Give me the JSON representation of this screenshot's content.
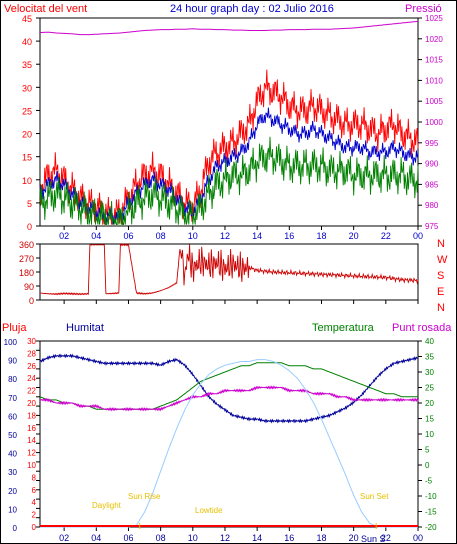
{
  "colors": {
    "wind": "#ff0000",
    "gust_dark": "#cc0000",
    "average": "#0000cc",
    "temperature": "#008000",
    "dew_point": "#cc00cc",
    "humidity": "#000099",
    "pressure": "#cc00cc",
    "rain": "#ff0000",
    "solar": "#99ccff",
    "sun_events": "#e6c000",
    "axis": "#000000"
  },
  "header": {
    "wind_label": "Velocitat del vent",
    "title": "24 hour graph day : 02 Julio 2016",
    "pressure_label": "Pressió"
  },
  "bottom_header": {
    "rain_label": "Pluja",
    "humidity_label": "Humitat",
    "temperature_label": "Temperatura",
    "dew_label": "Punt rosada"
  },
  "direction_labels": [
    "N",
    "W",
    "S",
    "E",
    "N"
  ],
  "sun_events": {
    "daylight": "Daylight",
    "sunrise": "Sun Rise",
    "sunset": "Sun Set",
    "lowtide": "Lowtide",
    "suns": "Sun S"
  },
  "chart_data": [
    {
      "type": "line",
      "name": "wind-pressure",
      "x_ticks": [
        "02",
        "04",
        "06",
        "08",
        "10",
        "12",
        "14",
        "16",
        "18",
        "20",
        "22",
        "00"
      ],
      "x_range_hours": [
        0.5,
        24
      ],
      "ylim_left": [
        0,
        45
      ],
      "yticks_left": [
        0,
        5,
        10,
        15,
        20,
        25,
        30,
        35,
        40,
        45
      ],
      "ylim_right": [
        975,
        1025
      ],
      "yticks_right": [
        975,
        980,
        985,
        990,
        995,
        1000,
        1005,
        1010,
        1015,
        1020,
        1025
      ],
      "hours": [
        0.5,
        1,
        1.5,
        2,
        2.5,
        3,
        3.5,
        4,
        4.5,
        5,
        5.5,
        6,
        6.5,
        7,
        7.5,
        8,
        8.5,
        9,
        9.5,
        10,
        10.5,
        11,
        11.5,
        12,
        12.5,
        13,
        13.5,
        14,
        14.5,
        15,
        15.5,
        16,
        16.5,
        17,
        17.5,
        18,
        18.5,
        19,
        19.5,
        20,
        20.5,
        21,
        21.5,
        22,
        22.5,
        23,
        23.5,
        24
      ],
      "series": [
        {
          "key": "gust",
          "values": [
            8,
            11,
            12,
            10,
            8,
            6,
            5,
            4,
            3,
            2,
            3,
            6,
            9,
            11,
            12,
            11,
            9,
            7,
            5,
            4,
            8,
            14,
            16,
            17,
            18,
            20,
            22,
            27,
            30,
            29,
            28,
            26,
            25,
            25,
            26,
            25,
            24,
            23,
            22,
            22,
            22,
            21,
            20,
            21,
            22,
            20,
            19,
            18
          ]
        },
        {
          "key": "average",
          "values": [
            7,
            9,
            10,
            9,
            7,
            5,
            4,
            3,
            2,
            2,
            2,
            5,
            7,
            9,
            10,
            9,
            8,
            6,
            4,
            3,
            6,
            10,
            13,
            14,
            15,
            16,
            18,
            22,
            24,
            23,
            22,
            21,
            20,
            20,
            21,
            20,
            19,
            18,
            17,
            17,
            17,
            16,
            16,
            16,
            17,
            16,
            15,
            15
          ]
        },
        {
          "key": "wind",
          "values": [
            5,
            6,
            7,
            6,
            5,
            4,
            3,
            2,
            2,
            1,
            1,
            3,
            5,
            6,
            7,
            6,
            5,
            4,
            2,
            2,
            4,
            7,
            9,
            10,
            11,
            11,
            12,
            14,
            15,
            15,
            14,
            13,
            13,
            13,
            13,
            13,
            12,
            12,
            12,
            11,
            11,
            11,
            11,
            11,
            11,
            11,
            10,
            10
          ]
        },
        {
          "key": "pressure",
          "values": [
            1021.5,
            1021.6,
            1021.4,
            1021.3,
            1021.2,
            1021.0,
            1021.0,
            1021.1,
            1021.2,
            1021.3,
            1021.4,
            1021.6,
            1021.8,
            1022.0,
            1022.1,
            1022.2,
            1022.2,
            1022.3,
            1022.3,
            1022.4,
            1022.3,
            1022.3,
            1022.2,
            1022.2,
            1022.1,
            1022.1,
            1022.0,
            1022.0,
            1022.0,
            1022.1,
            1022.1,
            1022.2,
            1022.2,
            1022.2,
            1022.3,
            1022.3,
            1022.3,
            1022.4,
            1022.5,
            1022.6,
            1022.8,
            1023.0,
            1023.2,
            1023.4,
            1023.6,
            1023.8,
            1024.0,
            1024.2
          ]
        }
      ]
    },
    {
      "type": "line",
      "name": "wind-direction",
      "ylim": [
        0,
        360
      ],
      "yticks": [
        0,
        90,
        180,
        270,
        360
      ],
      "hours": [
        0.5,
        1,
        1.5,
        2,
        2.5,
        3,
        3.5,
        3.6,
        4,
        4.5,
        4.6,
        5,
        5.4,
        5.5,
        5.6,
        6,
        6.5,
        7,
        7.5,
        8,
        8.5,
        9,
        9.2,
        9.5,
        9.7,
        10,
        10.5,
        11,
        11.5,
        12,
        12.5,
        13,
        13.5,
        14,
        15,
        16,
        17,
        18,
        19,
        20,
        21,
        22,
        23,
        24
      ],
      "values": [
        45,
        40,
        38,
        42,
        40,
        38,
        40,
        355,
        355,
        355,
        40,
        42,
        45,
        355,
        355,
        355,
        45,
        40,
        45,
        60,
        80,
        110,
        330,
        150,
        300,
        200,
        250,
        220,
        240,
        200,
        230,
        200,
        210,
        190,
        180,
        175,
        170,
        165,
        160,
        155,
        150,
        145,
        130,
        125
      ]
    },
    {
      "type": "line",
      "name": "humidity-temperature",
      "ylim_left": [
        0,
        100
      ],
      "yticks_left": [
        0,
        5,
        10,
        15,
        20,
        25,
        30,
        35,
        40,
        45,
        50,
        55,
        60,
        65,
        70,
        75,
        80,
        85,
        90,
        95,
        100
      ],
      "rain_ticks": [
        0,
        2,
        4,
        6,
        8,
        10,
        12,
        14,
        16,
        18,
        20,
        22,
        24,
        26,
        28,
        30
      ],
      "ylim_right": [
        -20,
        40
      ],
      "yticks_right": [
        40,
        35,
        30,
        25,
        20,
        15,
        10,
        5,
        0,
        -5,
        -10,
        -15,
        -20
      ],
      "hours": [
        0.5,
        1,
        1.5,
        2,
        2.5,
        3,
        3.5,
        4,
        4.5,
        5,
        5.5,
        6,
        6.5,
        7,
        7.5,
        8,
        8.5,
        9,
        9.5,
        10,
        10.5,
        11,
        11.5,
        12,
        12.5,
        13,
        13.5,
        14,
        14.5,
        15,
        15.5,
        16,
        16.5,
        17,
        17.5,
        18,
        18.5,
        19,
        19.5,
        20,
        20.5,
        21,
        21.5,
        22,
        22.5,
        23,
        23.5,
        24
      ],
      "series": [
        {
          "key": "humidity",
          "values": [
            89,
            91,
            92,
            92,
            92,
            91,
            90,
            89,
            88,
            88,
            88,
            88,
            88,
            88,
            88,
            87,
            89,
            90,
            87,
            82,
            76,
            70,
            66,
            63,
            60,
            59,
            58,
            58,
            57,
            57,
            57,
            57,
            57,
            57,
            58,
            59,
            60,
            62,
            64,
            67,
            71,
            76,
            81,
            85,
            88,
            89,
            90,
            91
          ]
        },
        {
          "key": "temperature",
          "values": [
            22,
            21,
            21,
            20,
            20,
            19,
            19,
            18,
            18,
            18,
            18,
            18,
            18,
            18,
            18,
            19,
            20,
            21,
            23,
            25,
            27,
            28,
            29,
            30,
            31,
            32,
            32,
            33,
            33,
            33,
            33,
            32,
            32,
            32,
            31,
            31,
            30,
            29,
            28,
            27,
            26,
            25,
            24,
            23,
            23,
            22,
            22,
            22
          ]
        },
        {
          "key": "dew_point",
          "values": [
            21,
            21,
            20,
            20,
            20,
            19,
            19,
            19,
            18,
            18,
            18,
            18,
            18,
            18,
            18,
            18,
            19,
            20,
            21,
            22,
            22,
            23,
            23,
            24,
            24,
            24,
            24,
            25,
            25,
            25,
            25,
            24,
            24,
            24,
            23,
            23,
            23,
            22,
            22,
            21,
            21,
            21,
            21,
            21,
            21,
            21,
            21,
            21
          ]
        },
        {
          "key": "solar",
          "values": [
            0,
            0,
            0,
            0,
            0,
            0,
            0,
            0,
            0,
            0,
            0,
            0,
            1,
            8,
            18,
            30,
            42,
            53,
            63,
            71,
            77,
            82,
            85,
            87,
            88,
            89,
            89,
            90,
            90,
            89,
            87,
            84,
            80,
            74,
            67,
            58,
            48,
            38,
            28,
            17,
            8,
            2,
            0,
            0,
            0,
            0,
            0,
            0
          ]
        }
      ]
    }
  ]
}
